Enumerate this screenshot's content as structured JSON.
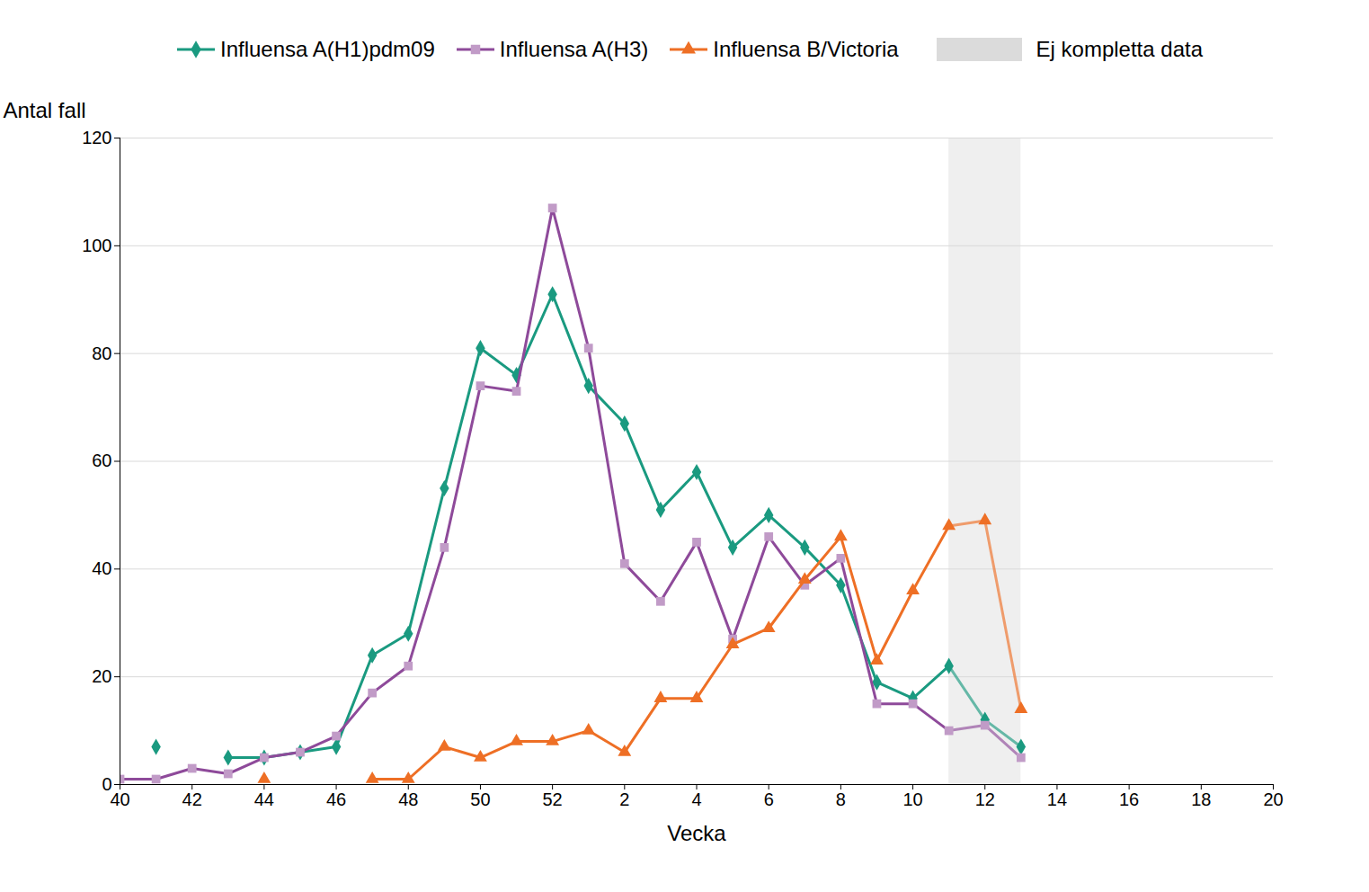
{
  "chart_data": {
    "type": "line",
    "x_label": "Vecka",
    "y_label": "Antal fall",
    "categories": [
      "40",
      null,
      "42",
      null,
      "44",
      null,
      "46",
      null,
      "48",
      null,
      "50",
      null,
      "52",
      null,
      "2",
      null,
      "4",
      null,
      "6",
      null,
      "8",
      null,
      "10",
      null,
      "12",
      null,
      "14",
      null,
      "16",
      null,
      "18",
      null,
      "20"
    ],
    "series": [
      {
        "name": "Influensa A(H1)pdm09",
        "color": "#1a9a80",
        "marker": "diamond",
        "values": [
          null,
          7,
          null,
          5,
          5,
          6,
          7,
          24,
          28,
          55,
          81,
          76,
          91,
          74,
          67,
          51,
          58,
          44,
          50,
          44,
          37,
          19,
          16,
          22,
          12,
          7,
          null,
          null,
          null,
          null,
          null,
          null,
          null
        ]
      },
      {
        "name": "Influensa A(H3)",
        "color": "#8e4a9a",
        "marker": "square",
        "values": [
          1,
          1,
          3,
          2,
          5,
          6,
          9,
          17,
          22,
          44,
          74,
          73,
          107,
          81,
          41,
          34,
          45,
          27,
          46,
          37,
          42,
          15,
          15,
          10,
          11,
          5,
          null,
          null,
          null,
          null,
          null,
          null,
          null
        ]
      },
      {
        "name": "Influensa B/Victoria",
        "color": "#ee6f25",
        "marker": "triangle",
        "values": [
          null,
          null,
          null,
          null,
          1,
          null,
          null,
          1,
          1,
          7,
          5,
          8,
          8,
          10,
          6,
          16,
          16,
          26,
          29,
          38,
          46,
          23,
          36,
          48,
          49,
          14,
          null,
          null,
          null,
          null,
          null,
          null,
          null
        ]
      }
    ],
    "shaded": {
      "label": "Ej kompletta data",
      "from": 11,
      "to": 13,
      "color": "#efefef"
    },
    "ylim": [
      0,
      120
    ],
    "yticks": [
      0,
      20,
      40,
      60,
      80,
      100,
      120
    ],
    "grid": true,
    "legend": "top"
  }
}
